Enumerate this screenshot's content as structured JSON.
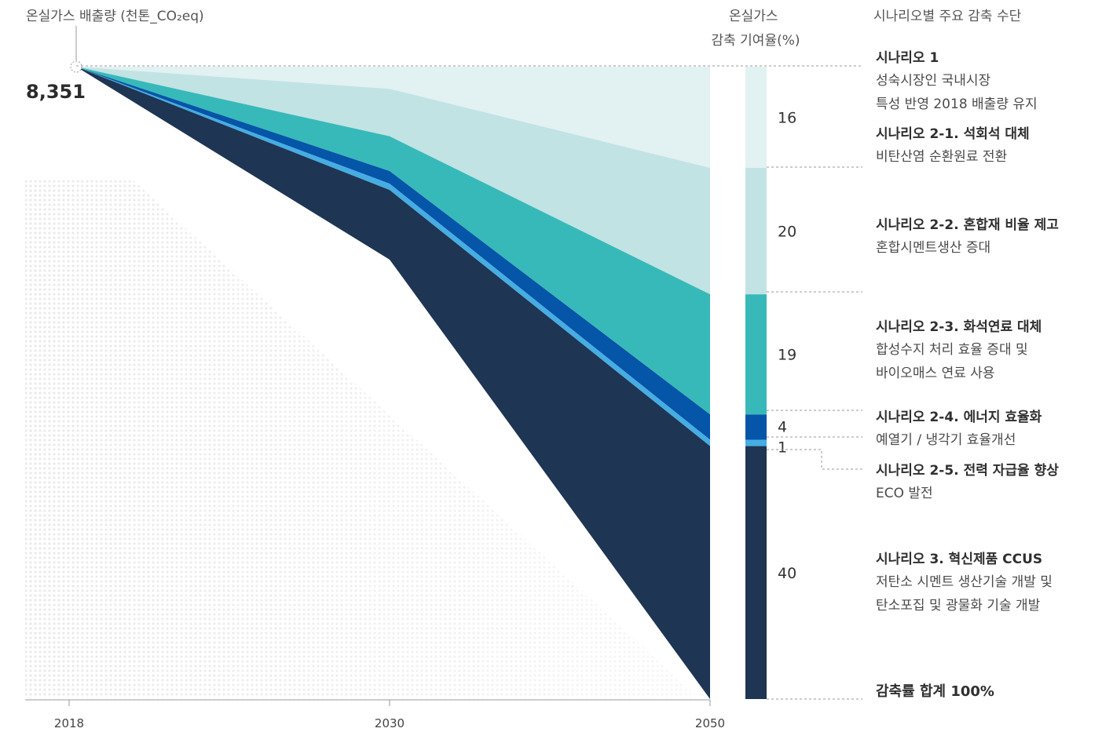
{
  "colors": {
    "s1": "#e2f1f2",
    "s2_1": "#c2e3e3",
    "s2_2": "#38b9b9",
    "s2_3": "#0555a8",
    "s2_4": "#46ade3",
    "s3": "#1e3553",
    "guide": "#9a9a9a",
    "axis": "#999999"
  },
  "chart_data": {
    "type": "area",
    "title": "",
    "ylabel": "온실가스 배출량 (천톤_CO₂eq)",
    "start_value_label": "8,351",
    "x": [
      "2018",
      "2030",
      "2050"
    ],
    "layers_pct_of_2018": [
      {
        "name": "시나리오 1",
        "values": [
          0,
          3.5,
          16
        ]
      },
      {
        "name": "시나리오 2-1",
        "values": [
          0,
          11,
          36
        ]
      },
      {
        "name": "시나리오 2-2",
        "values": [
          0,
          16.5,
          55
        ]
      },
      {
        "name": "시나리오 2-3",
        "values": [
          0,
          18.5,
          59
        ]
      },
      {
        "name": "시나리오 2-4",
        "values": [
          0,
          19.5,
          60
        ]
      },
      {
        "name": "시나리오 3",
        "values": [
          0,
          30.5,
          100
        ]
      }
    ],
    "contribution_header": "온실가스\n감축 기여율(%)",
    "contributions": [
      {
        "key": "s1",
        "value": "16"
      },
      {
        "key": "s2_1",
        "value": "20"
      },
      {
        "key": "s2_2",
        "value": "19"
      },
      {
        "key": "s2_3",
        "value": "4"
      },
      {
        "key": "s2_4",
        "value": "1"
      },
      {
        "key": "s3",
        "value": "40"
      }
    ]
  },
  "legend_header": "시나리오별 주요 감축 수단",
  "scenarios": [
    {
      "title": "시나리오 1",
      "desc": [
        "성숙시장인 국내시장",
        "특성 반영 2018 배출량 유지"
      ]
    },
    {
      "title": "시나리오 2-1. 석회석 대체",
      "desc": [
        "비탄산염 순환원료 전환"
      ]
    },
    {
      "title": "시나리오 2-2. 혼합재 비율 제고",
      "desc": [
        "혼합시멘트생산 증대"
      ]
    },
    {
      "title": "시나리오 2-3. 화석연료 대체",
      "desc": [
        "합성수지 처리 효율 증대 및",
        "바이오매스 연료 사용"
      ]
    },
    {
      "title": "시나리오 2-4. 에너지 효율화",
      "desc": [
        "예열기 / 냉각기 효율개선"
      ]
    },
    {
      "title": "시나리오 2-5. 전력 자급율 향상",
      "desc": [
        "ECO 발전"
      ]
    },
    {
      "title": "시나리오 3. 혁신제품 CCUS",
      "desc": [
        "저탄소 시멘트  생산기술 개발 및",
        "탄소포집 및 광물화 기술 개발"
      ]
    }
  ],
  "total_label": "감축률 합계 100%"
}
